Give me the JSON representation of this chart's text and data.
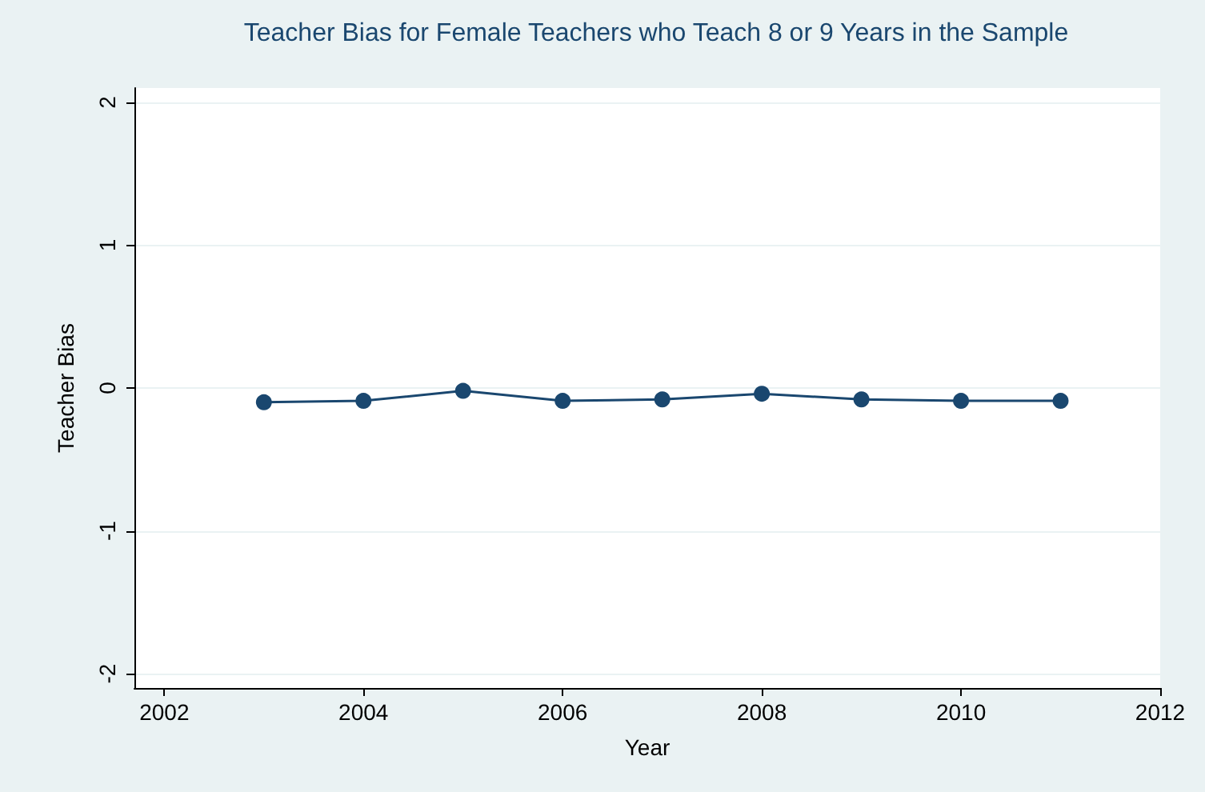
{
  "chart_data": {
    "type": "line",
    "title": "Teacher Bias for Female Teachers who Teach 8 or 9 Years in the Sample",
    "xlabel": "Year",
    "ylabel": "Teacher Bias",
    "x": [
      2003,
      2004,
      2005,
      2006,
      2007,
      2008,
      2009,
      2010,
      2011
    ],
    "series": [
      {
        "color": "#1a476f",
        "values": [
          -0.1,
          -0.09,
          -0.02,
          -0.09,
          -0.08,
          -0.04,
          -0.08,
          -0.09,
          -0.09
        ]
      }
    ],
    "xlim": [
      2001.7,
      2012
    ],
    "xticks": [
      2002,
      2004,
      2006,
      2008,
      2010,
      2012
    ],
    "ylim": [
      -2.1,
      2.1
    ],
    "yticks": [
      -2,
      -1,
      0,
      1,
      2
    ],
    "grid": "y",
    "marker": "circle",
    "line_style": "solid"
  }
}
